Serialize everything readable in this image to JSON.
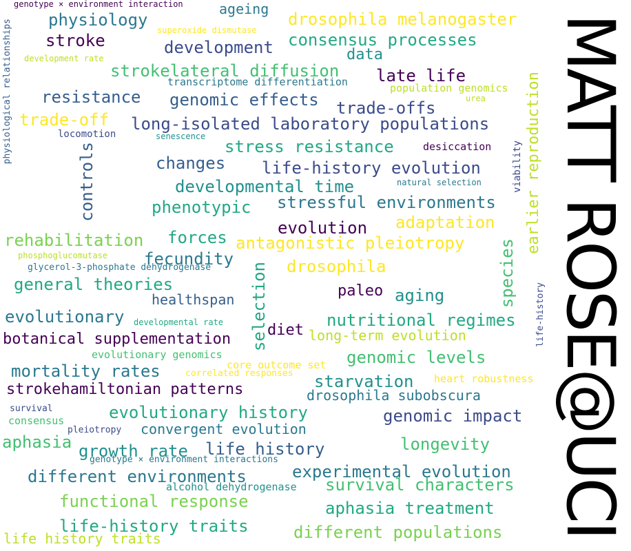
{
  "title": "MATT ROSE@UCI",
  "colors": {
    "dark_purple": "#440154",
    "indigo": "#3b4b8a",
    "blue": "#355e8d",
    "teal_blue": "#2a788e",
    "teal": "#21908d",
    "green_teal": "#22a884",
    "green": "#43bf71",
    "lime": "#7ad151",
    "yellow_green": "#bddf26",
    "yellow": "#fde725"
  },
  "words": [
    "genotype × environment interaction",
    "ageing",
    "drosophila melanogaster",
    "physiology",
    "superoxide dismutase",
    "physiological relationships",
    "stroke",
    "development",
    "consensus processes",
    "data",
    "development rate",
    "strokelateral diffusion",
    "late life",
    "transcriptome differentiation",
    "population genomics",
    "resistance",
    "genomic effects",
    "urea",
    "trade-offs",
    "trade-off",
    "long-isolated laboratory populations",
    "locomotion",
    "senescence",
    "earlier reproduction",
    "stress resistance",
    "desiccation",
    "viability",
    "controls",
    "changes",
    "life-history evolution",
    "developmental time",
    "natural selection",
    "phenotypic",
    "stressful environments",
    "adaptation",
    "evolution",
    "rehabilitation",
    "forces",
    "antagonistic pleiotropy",
    "fecundity",
    "phosphoglucomutase",
    "glycerol-3-phosphate dehydrogenase",
    "drosophila",
    "species",
    "general theories",
    "selection",
    "paleo",
    "aging",
    "life-history",
    "healthspan",
    "evolutionary",
    "developmental rate",
    "nutritional regimes",
    "diet",
    "botanical supplementation",
    "long-term evolution",
    "evolutionary genomics",
    "genomic levels",
    "core outcome set",
    "mortality rates",
    "correlated responses",
    "heart robustness",
    "starvation",
    "strokehamiltonian patterns",
    "drosophila subobscura",
    "survival",
    "evolutionary history",
    "consensus",
    "genomic impact",
    "convergent evolution",
    "pleiotropy",
    "aphasia",
    "longevity",
    "growth rate",
    "life history",
    "genotype × environment interactions",
    "experimental evolution",
    "different environments",
    "survival characters",
    "alcohol dehydrogenase",
    "functional response",
    "aphasia treatment",
    "life-history traits",
    "different populations",
    "life history traits"
  ]
}
